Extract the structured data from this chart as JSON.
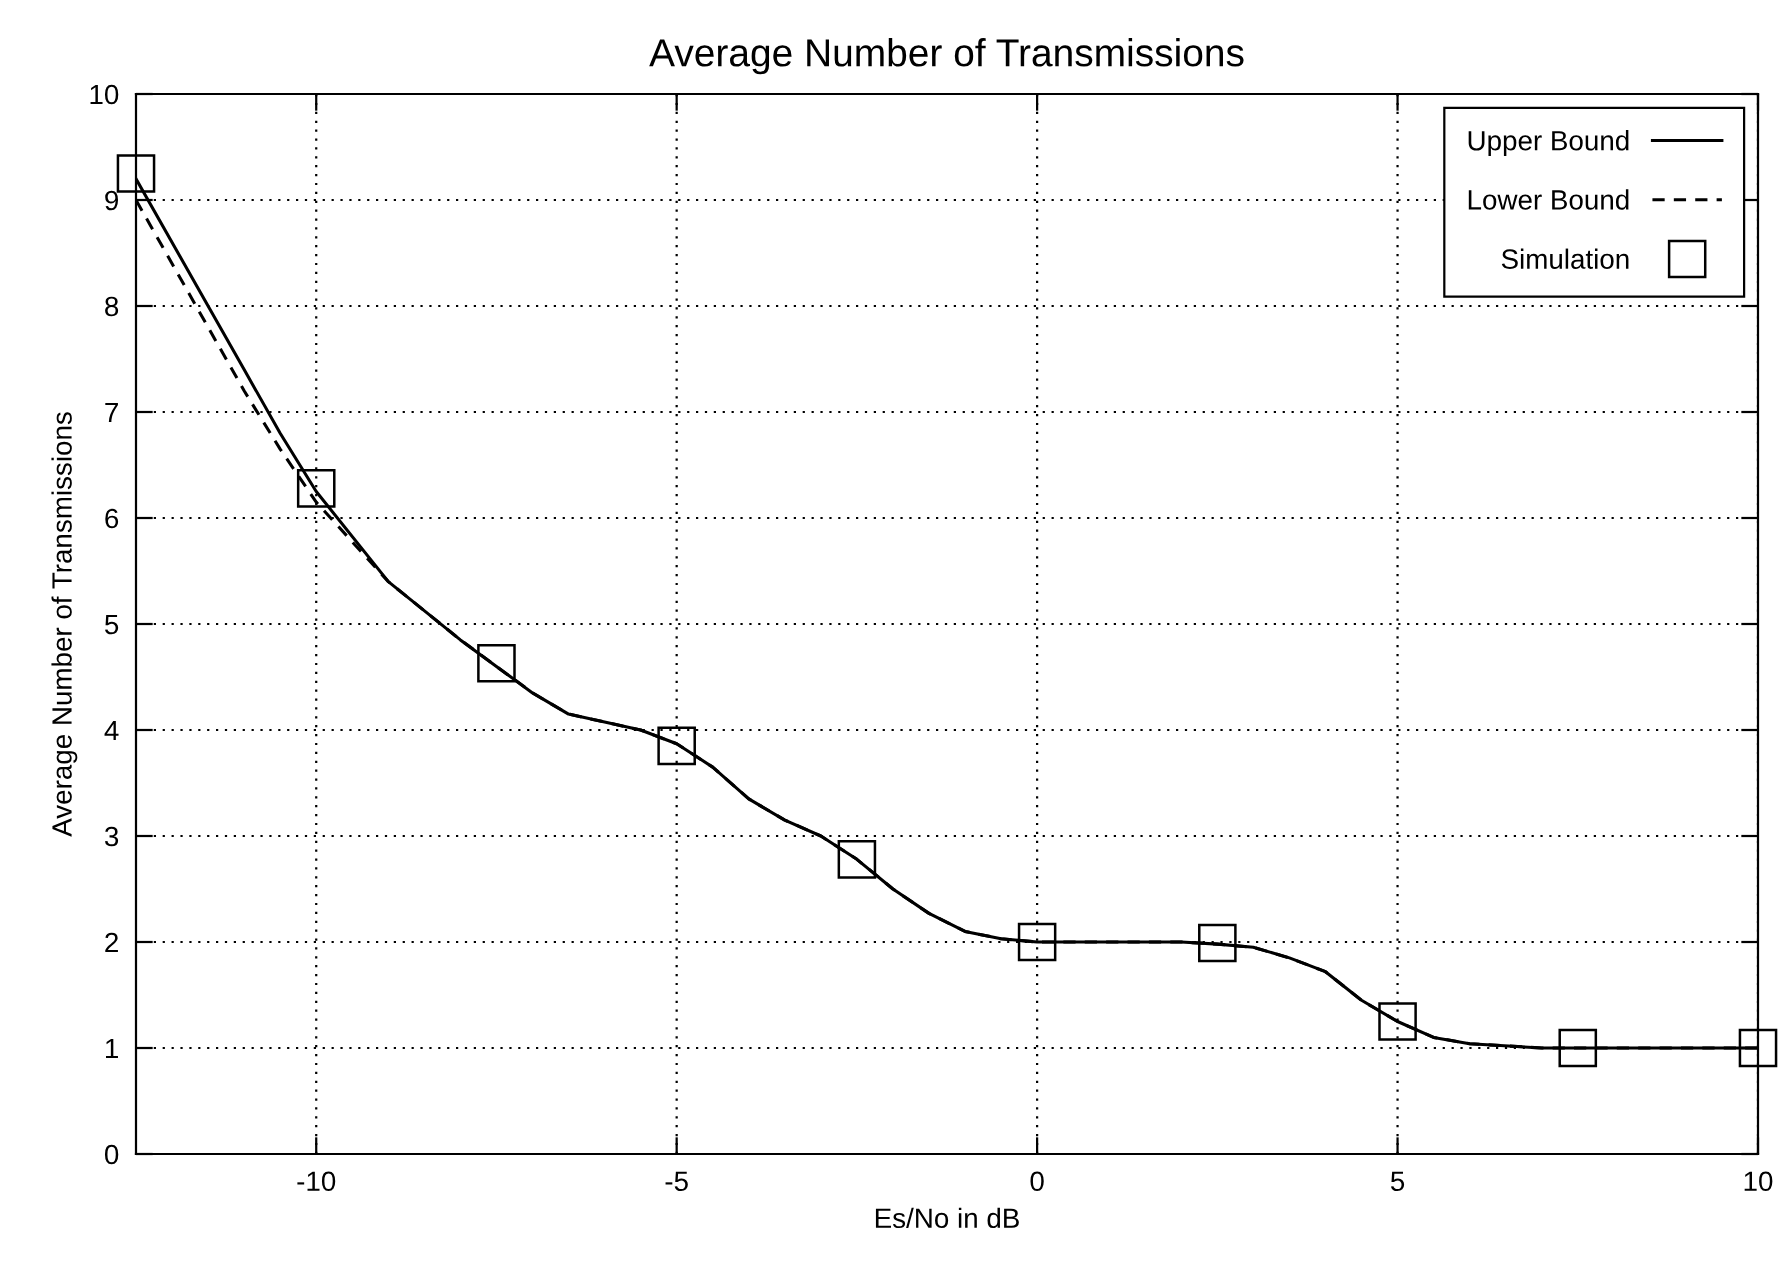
{
  "chart_data": {
    "type": "line",
    "title": "Average Number of Transmissions",
    "xlabel": "Es/No in dB",
    "ylabel": "Average Number of Transmissions",
    "xlim": [
      -12.5,
      10
    ],
    "xticks": [
      -10,
      -5,
      0,
      5,
      10
    ],
    "ylim": [
      0,
      10
    ],
    "yticks": [
      0,
      1,
      2,
      3,
      4,
      5,
      6,
      7,
      8,
      9,
      10
    ],
    "grid": true,
    "legend": "top right",
    "series": [
      {
        "name": "Upper Bound",
        "color": "#000000",
        "line_style": "solid",
        "marker": "none",
        "x": [
          -12.5,
          -11.5,
          -11,
          -10.5,
          -10,
          -9,
          -8,
          -7.5,
          -7,
          -6.5,
          -5.5,
          -5,
          -4.5,
          -4,
          -3.5,
          -3,
          -2.5,
          -2,
          -1.5,
          -1,
          -0.5,
          0,
          1,
          2,
          2.5,
          3,
          3.5,
          4,
          4.5,
          5,
          5.5,
          6,
          7,
          8,
          10
        ],
        "values": [
          9.2,
          8.0,
          7.4,
          6.8,
          6.25,
          5.4,
          4.85,
          4.6,
          4.35,
          4.15,
          4.0,
          3.87,
          3.65,
          3.35,
          3.15,
          3.0,
          2.78,
          2.5,
          2.27,
          2.1,
          2.03,
          2.0,
          2.0,
          2.0,
          1.98,
          1.95,
          1.85,
          1.72,
          1.45,
          1.25,
          1.1,
          1.04,
          1.0,
          1.0,
          1.0
        ]
      },
      {
        "name": "Lower Bound",
        "color": "#000000",
        "line_style": "dashed",
        "marker": "none",
        "x": [
          -12.5,
          -11.5,
          -11,
          -10.5,
          -10,
          -9,
          -8,
          -7.5,
          -7,
          -6.5,
          -5.5,
          -5,
          -4.5,
          -4,
          -3.5,
          -3,
          -2.5,
          -2,
          -1.5,
          -1,
          -0.5,
          0,
          1,
          2,
          2.5,
          3,
          3.5,
          4,
          4.5,
          5,
          5.5,
          6,
          7,
          8,
          10
        ],
        "values": [
          9.0,
          7.8,
          7.2,
          6.65,
          6.15,
          5.4,
          4.85,
          4.6,
          4.35,
          4.15,
          4.0,
          3.87,
          3.65,
          3.35,
          3.15,
          3.0,
          2.78,
          2.5,
          2.27,
          2.1,
          2.03,
          2.0,
          2.0,
          2.0,
          1.98,
          1.95,
          1.85,
          1.72,
          1.45,
          1.25,
          1.1,
          1.04,
          1.0,
          1.0,
          1.0
        ]
      },
      {
        "name": "Simulation",
        "type": "scatter",
        "color": "#000000",
        "marker": "square",
        "x": [
          -12.5,
          -10,
          -7.5,
          -5,
          -2.5,
          0,
          2.5,
          5,
          7.5,
          10
        ],
        "values": [
          9.25,
          6.28,
          4.63,
          3.85,
          2.78,
          2.0,
          1.99,
          1.25,
          1.0,
          1.0
        ]
      }
    ]
  }
}
